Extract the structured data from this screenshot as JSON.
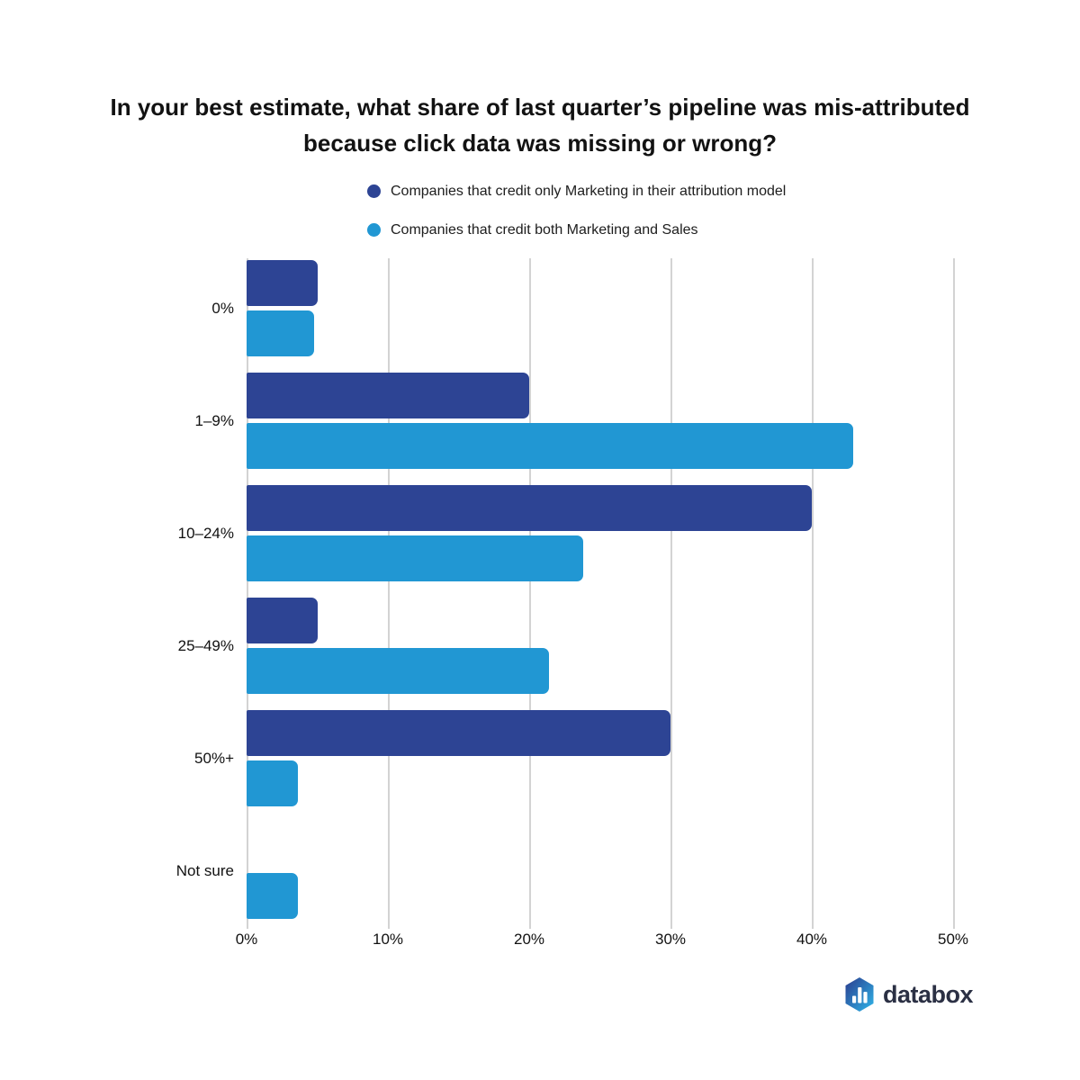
{
  "page": {
    "background_color": "#ffffff"
  },
  "chart_data": {
    "type": "bar",
    "orientation": "horizontal",
    "title": "In your best estimate, what share of last quarter’s pipeline was mis-attributed because click data was missing or wrong?",
    "categories": [
      "0%",
      "1–9%",
      "10–24%",
      "25–49%",
      "50%+",
      "Not sure"
    ],
    "series": [
      {
        "name": "Companies that credit only Marketing in their attribution model",
        "color": "#2d4494",
        "values": [
          5,
          20,
          40,
          5,
          30,
          0
        ]
      },
      {
        "name": "Companies that credit both Marketing and Sales",
        "color": "#2197d3",
        "values": [
          4.8,
          42.9,
          23.8,
          21.4,
          3.6,
          3.6
        ]
      }
    ],
    "x_axis": {
      "unit": "%",
      "min": 0,
      "max": 50,
      "ticks": [
        0,
        10,
        20,
        30,
        40,
        50
      ],
      "tick_labels": [
        "0%",
        "10%",
        "20%",
        "30%",
        "40%",
        "50%"
      ]
    },
    "grid": "vertical",
    "gridline_color": "#d3d3d3",
    "legend_position": "top"
  },
  "branding": {
    "logo_text": "databox",
    "logo_icon": "databox-hexagon-bar-chart-icon",
    "logo_text_color": "#2b3044",
    "logo_gradient_start": "#2b3c8e",
    "logo_gradient_end": "#2fb6e9"
  }
}
